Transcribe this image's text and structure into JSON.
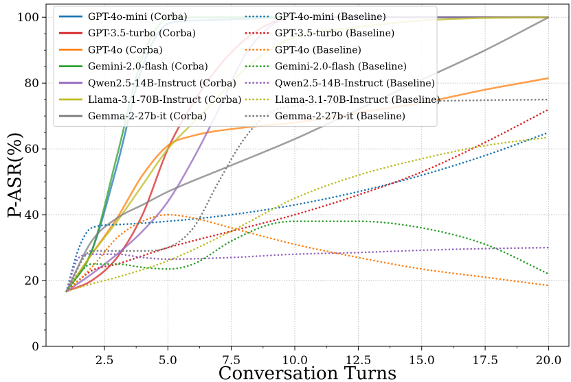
{
  "chart_data": {
    "type": "line",
    "title": "",
    "xlabel": "Conversation Turns",
    "ylabel": "P-ASR(%)",
    "xlim": [
      0.2,
      20.8
    ],
    "ylim": [
      0,
      104
    ],
    "xticks": [
      2.5,
      5.0,
      7.5,
      10.0,
      12.5,
      15.0,
      17.5,
      20.0
    ],
    "xtick_labels": [
      "2.5",
      "5.0",
      "7.5",
      "10.0",
      "12.5",
      "15.0",
      "17.5",
      "20.0"
    ],
    "yticks": [
      0,
      20,
      40,
      60,
      80,
      100
    ],
    "ytick_labels": [
      "0",
      "20",
      "40",
      "60",
      "80",
      "100"
    ],
    "grid": true,
    "legend_position": "top-left, two columns",
    "series": [
      {
        "name": "GPT-4o-mini (Corba)",
        "color": "#1f77b4",
        "style": "solid",
        "points": [
          [
            1,
            16.7
          ],
          [
            2,
            29
          ],
          [
            3,
            55
          ],
          [
            4,
            85
          ],
          [
            5,
            98
          ],
          [
            6,
            99
          ],
          [
            8,
            99.5
          ],
          [
            10,
            100
          ],
          [
            20,
            100
          ]
        ]
      },
      {
        "name": "GPT-3.5-turbo (Corba)",
        "color": "#d62728",
        "style": "solid",
        "points": [
          [
            1,
            16.7
          ],
          [
            2,
            20
          ],
          [
            3,
            27
          ],
          [
            4,
            40
          ],
          [
            5,
            60
          ],
          [
            6,
            74
          ],
          [
            7,
            85
          ],
          [
            8,
            93
          ],
          [
            9,
            98
          ],
          [
            10,
            100
          ],
          [
            20,
            100
          ]
        ]
      },
      {
        "name": "GPT-4o (Corba)",
        "color": "#ff7f0e",
        "style": "solid",
        "points": [
          [
            1,
            16.7
          ],
          [
            2,
            28
          ],
          [
            3,
            39
          ],
          [
            4,
            52
          ],
          [
            5,
            61
          ],
          [
            6,
            64
          ],
          [
            8,
            66.5
          ],
          [
            10,
            68
          ],
          [
            12.5,
            71
          ],
          [
            15,
            74
          ],
          [
            17.5,
            78
          ],
          [
            20,
            81.5
          ]
        ]
      },
      {
        "name": "Gemini-2.0-flash (Corba)",
        "color": "#2ca02c",
        "style": "solid",
        "points": [
          [
            1,
            16.7
          ],
          [
            2,
            29
          ],
          [
            3,
            58
          ],
          [
            4,
            88
          ],
          [
            5,
            99.5
          ],
          [
            6,
            100
          ],
          [
            8,
            100
          ],
          [
            10,
            100
          ],
          [
            20,
            100
          ]
        ]
      },
      {
        "name": "Qwen2.5-14B-Instruct (Corba)",
        "color": "#9467bd",
        "style": "solid",
        "points": [
          [
            1,
            16.7
          ],
          [
            2,
            22
          ],
          [
            3,
            28
          ],
          [
            4,
            35
          ],
          [
            5,
            44
          ],
          [
            6,
            57
          ],
          [
            7,
            72
          ],
          [
            8,
            88
          ],
          [
            9,
            97
          ],
          [
            10,
            100
          ],
          [
            20,
            100
          ]
        ]
      },
      {
        "name": "Llama-3.1-70B-Instruct (Corba)",
        "color": "#bcbd22",
        "style": "solid",
        "points": [
          [
            1,
            16.7
          ],
          [
            2,
            28
          ],
          [
            3,
            38
          ],
          [
            4,
            49
          ],
          [
            5,
            60
          ],
          [
            6,
            68
          ],
          [
            7,
            76
          ],
          [
            8,
            84
          ],
          [
            9,
            90
          ],
          [
            10,
            94
          ],
          [
            12.5,
            97
          ],
          [
            15,
            99
          ],
          [
            17.5,
            99.8
          ],
          [
            20,
            100
          ]
        ]
      },
      {
        "name": "Gemma-2-27b-it (Corba)",
        "color": "#7f7f7f",
        "style": "solid",
        "points": [
          [
            1,
            16.7
          ],
          [
            2,
            32
          ],
          [
            3,
            39
          ],
          [
            4,
            43
          ],
          [
            5,
            47
          ],
          [
            7.5,
            55
          ],
          [
            10,
            63
          ],
          [
            12.5,
            72
          ],
          [
            15,
            81
          ],
          [
            17.5,
            90
          ],
          [
            20,
            100
          ]
        ]
      },
      {
        "name": "GPT-4o-mini (Baseline)",
        "color": "#1f77b4",
        "style": "dotted",
        "points": [
          [
            1,
            16.7
          ],
          [
            1.5,
            30
          ],
          [
            2,
            36
          ],
          [
            3,
            37
          ],
          [
            5,
            38
          ],
          [
            7.5,
            40
          ],
          [
            10,
            43
          ],
          [
            12.5,
            47
          ],
          [
            15,
            52
          ],
          [
            17.5,
            58
          ],
          [
            20,
            65
          ]
        ]
      },
      {
        "name": "GPT-3.5-turbo (Baseline)",
        "color": "#d62728",
        "style": "dotted",
        "points": [
          [
            1,
            16.7
          ],
          [
            2,
            23
          ],
          [
            3,
            25
          ],
          [
            5,
            30
          ],
          [
            7.5,
            35
          ],
          [
            10,
            40
          ],
          [
            12.5,
            46
          ],
          [
            15,
            53
          ],
          [
            17.5,
            62
          ],
          [
            20,
            72
          ]
        ]
      },
      {
        "name": "GPT-4o (Baseline)",
        "color": "#ff7f0e",
        "style": "dotted",
        "points": [
          [
            1,
            16.7
          ],
          [
            2,
            24
          ],
          [
            3,
            33
          ],
          [
            4,
            38
          ],
          [
            5,
            40
          ],
          [
            6,
            39
          ],
          [
            7.5,
            36
          ],
          [
            10,
            31
          ],
          [
            12.5,
            27
          ],
          [
            15,
            23.5
          ],
          [
            17.5,
            21
          ],
          [
            20,
            18.5
          ]
        ]
      },
      {
        "name": "Gemini-2.0-flash (Baseline)",
        "color": "#2ca02c",
        "style": "dotted",
        "points": [
          [
            1,
            16.7
          ],
          [
            2,
            25
          ],
          [
            3,
            25
          ],
          [
            4,
            24
          ],
          [
            5,
            23.5
          ],
          [
            6,
            25
          ],
          [
            7.5,
            32
          ],
          [
            9,
            37
          ],
          [
            10,
            38
          ],
          [
            12.5,
            38
          ],
          [
            15,
            36
          ],
          [
            17.5,
            31
          ],
          [
            20,
            22
          ]
        ]
      },
      {
        "name": "Qwen2.5-14B-Instruct (Baseline)",
        "color": "#9467bd",
        "style": "dotted",
        "points": [
          [
            1,
            16.7
          ],
          [
            1.5,
            27
          ],
          [
            2,
            28
          ],
          [
            3,
            28
          ],
          [
            4,
            27
          ],
          [
            5,
            26.5
          ],
          [
            7.5,
            27
          ],
          [
            10,
            28
          ],
          [
            12.5,
            28.5
          ],
          [
            15,
            29.2
          ],
          [
            17.5,
            29.7
          ],
          [
            20,
            30
          ]
        ]
      },
      {
        "name": "Llama-3.1-70B-Instruct (Baseline)",
        "color": "#bcbd22",
        "style": "dotted",
        "points": [
          [
            1,
            16.7
          ],
          [
            2,
            19
          ],
          [
            3,
            21
          ],
          [
            5,
            26
          ],
          [
            7.5,
            35
          ],
          [
            10,
            45
          ],
          [
            12.5,
            52
          ],
          [
            15,
            57
          ],
          [
            17.5,
            61
          ],
          [
            20,
            63.5
          ]
        ]
      },
      {
        "name": "Gemma-2-27b-it (Baseline)",
        "color": "#7f7f7f",
        "style": "dotted",
        "points": [
          [
            1,
            16.7
          ],
          [
            2,
            29
          ],
          [
            3,
            29
          ],
          [
            4,
            29
          ],
          [
            5,
            30
          ],
          [
            6,
            36
          ],
          [
            7,
            50
          ],
          [
            8,
            63
          ],
          [
            9,
            71
          ],
          [
            10,
            73
          ],
          [
            12.5,
            74
          ],
          [
            15,
            74.5
          ],
          [
            17.5,
            74.8
          ],
          [
            20,
            75
          ]
        ]
      }
    ]
  }
}
